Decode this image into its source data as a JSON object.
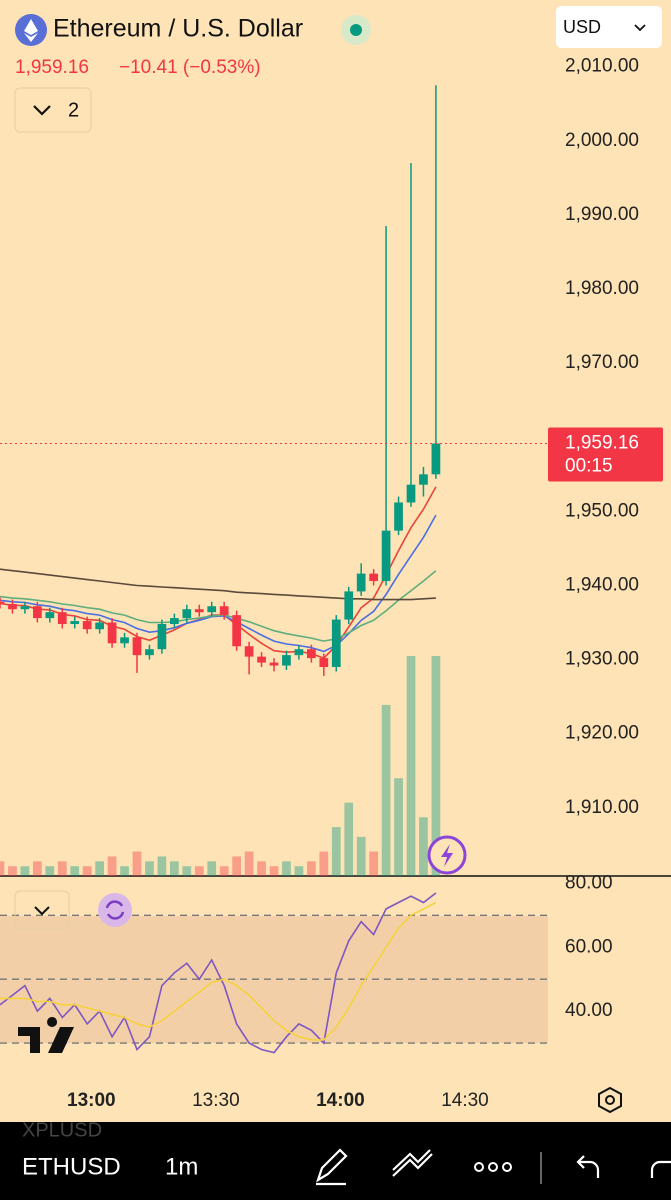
{
  "header": {
    "title": "Ethereum / U.S. Dollar",
    "change": "−10.41 (−0.53%)",
    "indicator_count": "2",
    "currency": "USD"
  },
  "bottom_bar": {
    "prev_symbol": "XPLUSD",
    "symbol": "ETHUSD",
    "interval": "1m"
  },
  "chart_data": {
    "type": "candlestick",
    "xlim": [
      758,
      890
    ],
    "xticks": [
      {
        "value": 780,
        "label": "13:00"
      },
      {
        "value": 810,
        "label": "13:30"
      },
      {
        "value": 840,
        "label": "14:00"
      },
      {
        "value": 870,
        "label": "14:30"
      }
    ],
    "ylim": [
      1900.8,
      2019
    ],
    "yticks": [
      {
        "value": 2010,
        "label": "2,010.00"
      },
      {
        "value": 2000,
        "label": "2,000.00"
      },
      {
        "value": 1990,
        "label": "1,990.00"
      },
      {
        "value": 1980,
        "label": "1,980.00"
      },
      {
        "value": 1970,
        "label": "1,970.00"
      },
      {
        "value": 1960,
        "label": "1,960.00"
      },
      {
        "value": 1950,
        "label": "1,950.00"
      },
      {
        "value": 1940,
        "label": "1,940.00"
      },
      {
        "value": 1930,
        "label": "1,930.00"
      },
      {
        "value": 1920,
        "label": "1,920.00"
      },
      {
        "value": 1910,
        "label": "1,910.00"
      }
    ],
    "last_price": {
      "value": 1959.16,
      "label": "1,959.16"
    },
    "countdown": "00:15",
    "up_color": "#089981",
    "down_color": "#f23645",
    "t": [
      758,
      761,
      764,
      767,
      770,
      773,
      776,
      779,
      782,
      785,
      788,
      791,
      794,
      797,
      800,
      803,
      806,
      809,
      812,
      815,
      818,
      821,
      824,
      827,
      830,
      833,
      836,
      839,
      842,
      845,
      848,
      851,
      854,
      857,
      860,
      863
    ],
    "open": [
      1937.8,
      1937.5,
      1936.8,
      1937.2,
      1935.6,
      1936.4,
      1934.8,
      1935.2,
      1934.1,
      1935.0,
      1932.2,
      1933.0,
      1930.6,
      1931.4,
      1934.8,
      1935.6,
      1936.8,
      1936.4,
      1937.2,
      1936.0,
      1931.8,
      1930.4,
      1929.6,
      1929.2,
      1930.6,
      1931.4,
      1930.2,
      1929.0,
      1935.4,
      1939.2,
      1941.6,
      1940.6,
      1947.4,
      1951.2,
      1953.6,
      1955.0
    ],
    "high": [
      1938.4,
      1938.1,
      1937.8,
      1937.8,
      1937.0,
      1937.0,
      1935.8,
      1935.8,
      1935.6,
      1935.6,
      1933.6,
      1933.6,
      1932.0,
      1935.4,
      1936.2,
      1937.4,
      1937.4,
      1937.8,
      1937.8,
      1936.6,
      1932.4,
      1931.0,
      1930.2,
      1931.2,
      1932.0,
      1932.0,
      1930.8,
      1936.0,
      1939.8,
      1943.0,
      1942.2,
      1988.5,
      1952.0,
      1997.0,
      1956.0,
      2007.5
    ],
    "low": [
      1936.9,
      1936.2,
      1936.2,
      1935.0,
      1935.0,
      1934.2,
      1934.2,
      1933.5,
      1933.5,
      1931.6,
      1931.6,
      1928.2,
      1930.0,
      1930.8,
      1934.2,
      1935.0,
      1935.8,
      1935.8,
      1935.4,
      1931.2,
      1928.0,
      1929.0,
      1928.4,
      1928.6,
      1930.0,
      1929.6,
      1927.8,
      1928.4,
      1934.8,
      1938.6,
      1940.0,
      1940.0,
      1946.8,
      1950.6,
      1952.0,
      1954.4
    ],
    "close": [
      1937.5,
      1936.8,
      1937.2,
      1935.6,
      1936.4,
      1934.8,
      1935.2,
      1934.1,
      1935.0,
      1932.2,
      1933.0,
      1930.6,
      1931.4,
      1934.8,
      1935.6,
      1936.8,
      1936.4,
      1937.2,
      1936.0,
      1931.8,
      1930.4,
      1929.6,
      1929.2,
      1930.6,
      1931.4,
      1930.2,
      1929.0,
      1935.4,
      1939.2,
      1941.6,
      1940.6,
      1947.4,
      1951.2,
      1953.6,
      1955.0,
      1959.16
    ],
    "volume": [
      3,
      2,
      2,
      3,
      2,
      3,
      2,
      2,
      3,
      4,
      2,
      5,
      3,
      4,
      3,
      2,
      2,
      3,
      2,
      4,
      5,
      3,
      2,
      3,
      2,
      3,
      5,
      10,
      15,
      8,
      5,
      35,
      20,
      45,
      12,
      45
    ],
    "lines": [
      {
        "color": "#e8453c",
        "values": [
          1937.6,
          1937.3,
          1937.3,
          1936.8,
          1936.7,
          1936.1,
          1935.9,
          1935.4,
          1935.3,
          1934.5,
          1934.1,
          1933.1,
          1932.6,
          1933.3,
          1934.0,
          1934.9,
          1935.4,
          1936.0,
          1936.0,
          1934.7,
          1933.4,
          1932.2,
          1931.2,
          1931.0,
          1931.1,
          1930.8,
          1930.2,
          1931.9,
          1934.4,
          1937.0,
          1938.3,
          1941.4,
          1944.7,
          1947.8,
          1950.3,
          1953.3
        ]
      },
      {
        "color": "#4a6fe3",
        "values": [
          1938.0,
          1937.8,
          1937.7,
          1937.4,
          1937.2,
          1936.8,
          1936.6,
          1936.2,
          1936.0,
          1935.4,
          1935.0,
          1934.2,
          1933.7,
          1933.9,
          1934.3,
          1934.9,
          1935.3,
          1935.8,
          1935.9,
          1935.1,
          1934.2,
          1933.3,
          1932.5,
          1932.1,
          1931.9,
          1931.6,
          1931.1,
          1931.9,
          1933.5,
          1935.3,
          1936.5,
          1938.8,
          1941.5,
          1944.0,
          1946.5,
          1949.5
        ]
      },
      {
        "color": "#5fae7e",
        "values": [
          1938.5,
          1938.3,
          1938.2,
          1938.0,
          1937.8,
          1937.5,
          1937.3,
          1937.0,
          1936.8,
          1936.3,
          1936.0,
          1935.4,
          1935.0,
          1935.0,
          1935.1,
          1935.4,
          1935.6,
          1935.9,
          1936.0,
          1935.6,
          1935.1,
          1934.5,
          1933.9,
          1933.5,
          1933.2,
          1932.9,
          1932.5,
          1932.8,
          1933.6,
          1934.6,
          1935.3,
          1936.6,
          1938.0,
          1939.3,
          1940.6,
          1942.0
        ]
      },
      {
        "color": "#5a4a3a",
        "values": [
          1942.2,
          1942.0,
          1941.8,
          1941.6,
          1941.4,
          1941.2,
          1941.0,
          1940.8,
          1940.6,
          1940.4,
          1940.2,
          1940.0,
          1939.9,
          1939.8,
          1939.7,
          1939.6,
          1939.5,
          1939.4,
          1939.3,
          1939.1,
          1939.0,
          1938.9,
          1938.8,
          1938.7,
          1938.6,
          1938.5,
          1938.4,
          1938.3,
          1938.2,
          1938.2,
          1938.1,
          1938.1,
          1938.1,
          1938.1,
          1938.2,
          1938.3
        ]
      }
    ],
    "rsi": {
      "ylim": [
        20,
        82
      ],
      "yticks": [
        {
          "value": 80,
          "label": "80.00"
        },
        {
          "value": 60,
          "label": "60.00"
        },
        {
          "value": 40,
          "label": "40.00"
        }
      ],
      "levels": [
        70,
        50,
        30
      ],
      "lines": [
        {
          "color": "#7e57c2",
          "values": [
            42,
            45,
            48,
            40,
            44,
            38,
            42,
            36,
            40,
            32,
            38,
            28,
            32,
            48,
            52,
            55,
            50,
            56,
            48,
            36,
            30,
            28,
            27,
            32,
            36,
            34,
            30,
            52,
            62,
            68,
            64,
            72,
            74,
            76,
            74,
            77
          ]
        },
        {
          "color": "#f5d23c",
          "values": [
            44,
            44,
            44,
            43,
            43,
            42,
            42,
            41,
            40,
            39,
            38,
            36,
            35,
            37,
            40,
            43,
            46,
            49,
            50,
            48,
            45,
            41,
            37,
            34,
            32,
            31,
            31,
            35,
            41,
            48,
            54,
            60,
            66,
            70,
            72,
            74
          ]
        }
      ]
    }
  }
}
